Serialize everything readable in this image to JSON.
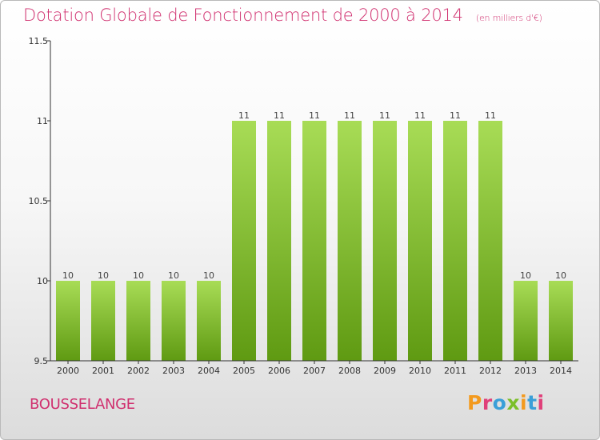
{
  "header": {
    "title": "Dotation Globale de Fonctionnement de 2000 à 2014",
    "unit": "(en milliers d'€)"
  },
  "footer": {
    "place": "BOUSSELANGE",
    "logo": "Proxiti"
  },
  "colors": {
    "title": "#d0306f",
    "bar_light": "#a8dc56",
    "bar_dark": "#5f9a12",
    "axis": "#333333"
  },
  "chart_data": {
    "type": "bar",
    "title": "Dotation Globale de Fonctionnement de 2000 à 2014",
    "subtitle": "(en milliers d'€)",
    "xlabel": "",
    "ylabel": "",
    "categories": [
      "2000",
      "2001",
      "2002",
      "2003",
      "2004",
      "2005",
      "2006",
      "2007",
      "2008",
      "2009",
      "2010",
      "2011",
      "2012",
      "2013",
      "2014"
    ],
    "values": [
      10,
      10,
      10,
      10,
      10,
      11,
      11,
      11,
      11,
      11,
      11,
      11,
      11,
      10,
      10
    ],
    "value_labels": [
      "10",
      "10",
      "10",
      "10",
      "10",
      "11",
      "11",
      "11",
      "11",
      "11",
      "11",
      "11",
      "11",
      "10",
      "10"
    ],
    "ylim": [
      9.5,
      11.5
    ],
    "yticks": [
      9.5,
      10,
      10.5,
      11,
      11.5
    ],
    "ytick_labels": [
      "9.5",
      "10",
      "10.5",
      "11",
      "11.5"
    ],
    "grid": false,
    "legend": "none"
  }
}
